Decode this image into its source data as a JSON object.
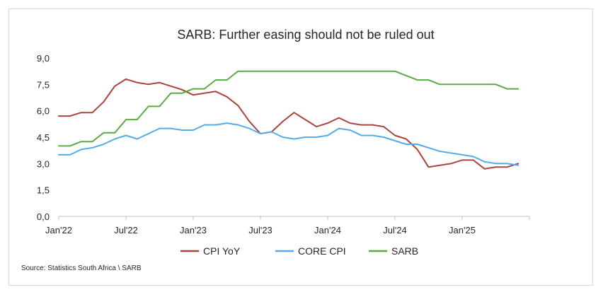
{
  "source": "Source:  Statistics South Africa \\ SARB",
  "chart_data": {
    "type": "line",
    "title": "SARB: Further easing should not be ruled out",
    "xlabel": "",
    "ylabel": "",
    "ylim": [
      0,
      9
    ],
    "yticks": [
      "0,0",
      "1,5",
      "3,0",
      "4,5",
      "6,0",
      "7,5",
      "9,0"
    ],
    "ytick_values": [
      0,
      1.5,
      3,
      4.5,
      6,
      7.5,
      9
    ],
    "xticks": [
      "Jan'22",
      "Jul'22",
      "Jan'23",
      "Jul'23",
      "Jan'24",
      "Jul'24",
      "Jan'25"
    ],
    "xtick_months": [
      0,
      6,
      12,
      18,
      24,
      30,
      36
    ],
    "x_range_months": [
      0,
      42
    ],
    "grid": false,
    "legend_position": "bottom",
    "series": [
      {
        "name": "CPI YoY",
        "color": "#a9453b",
        "values": [
          5.7,
          5.7,
          5.9,
          5.9,
          6.5,
          7.4,
          7.8,
          7.6,
          7.5,
          7.6,
          7.4,
          7.2,
          6.9,
          7.0,
          7.1,
          6.8,
          6.3,
          5.4,
          4.7,
          4.8,
          5.4,
          5.9,
          5.5,
          5.1,
          5.3,
          5.6,
          5.3,
          5.2,
          5.2,
          5.1,
          4.6,
          4.4,
          3.8,
          2.8,
          2.9,
          3.0,
          3.2,
          3.2,
          2.7,
          2.8,
          2.8,
          3.0
        ]
      },
      {
        "name": "CORE CPI",
        "color": "#56aaea",
        "values": [
          3.5,
          3.5,
          3.8,
          3.9,
          4.1,
          4.4,
          4.6,
          4.4,
          4.7,
          5.0,
          5.0,
          4.9,
          4.9,
          5.2,
          5.2,
          5.3,
          5.2,
          5.0,
          4.7,
          4.8,
          4.5,
          4.4,
          4.5,
          4.5,
          4.6,
          5.0,
          4.9,
          4.6,
          4.6,
          4.5,
          4.3,
          4.1,
          4.1,
          3.9,
          3.7,
          3.6,
          3.5,
          3.4,
          3.1,
          3.0,
          3.0,
          2.9
        ]
      },
      {
        "name": "SARB",
        "color": "#5daa45",
        "values": [
          4.0,
          4.0,
          4.25,
          4.25,
          4.75,
          4.75,
          5.5,
          5.5,
          6.25,
          6.25,
          7.0,
          7.0,
          7.25,
          7.25,
          7.75,
          7.75,
          8.25,
          8.25,
          8.25,
          8.25,
          8.25,
          8.25,
          8.25,
          8.25,
          8.25,
          8.25,
          8.25,
          8.25,
          8.25,
          8.25,
          8.25,
          8.0,
          7.75,
          7.75,
          7.5,
          7.5,
          7.5,
          7.5,
          7.5,
          7.5,
          7.25,
          7.25
        ]
      }
    ]
  }
}
